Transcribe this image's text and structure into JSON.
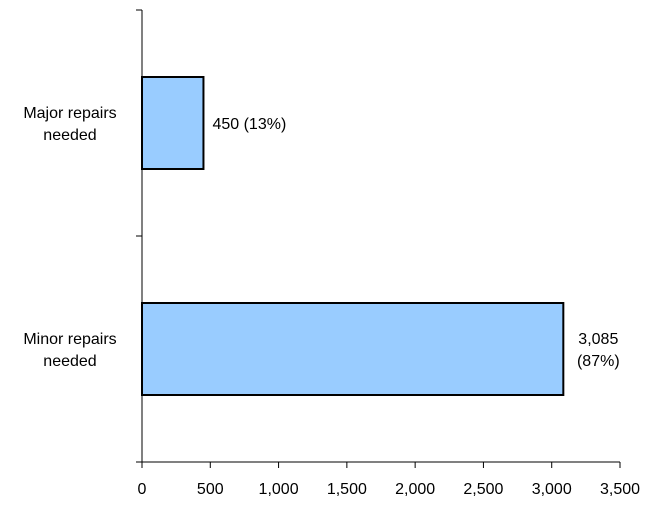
{
  "chart_data": {
    "type": "bar",
    "orientation": "horizontal",
    "categories": [
      [
        "Major repairs",
        "needed"
      ],
      [
        "Minor repairs",
        "needed"
      ]
    ],
    "values": [
      450,
      3085
    ],
    "data_labels": [
      [
        "450 (13%)"
      ],
      [
        "3,085",
        "(87%)"
      ]
    ],
    "title": "",
    "xlabel": "",
    "ylabel": "",
    "xlim": [
      0,
      3500
    ],
    "xticks": [
      0,
      500,
      1000,
      1500,
      2000,
      2500,
      3000,
      3500
    ],
    "xtick_labels": [
      "0",
      "500",
      "1,000",
      "1,500",
      "2,000",
      "2,500",
      "3,000",
      "3,500"
    ],
    "grid": false,
    "legend": "none",
    "colors": {
      "bar_fill": "#99CCFF",
      "bar_stroke": "#000000",
      "axis": "#000000"
    }
  }
}
